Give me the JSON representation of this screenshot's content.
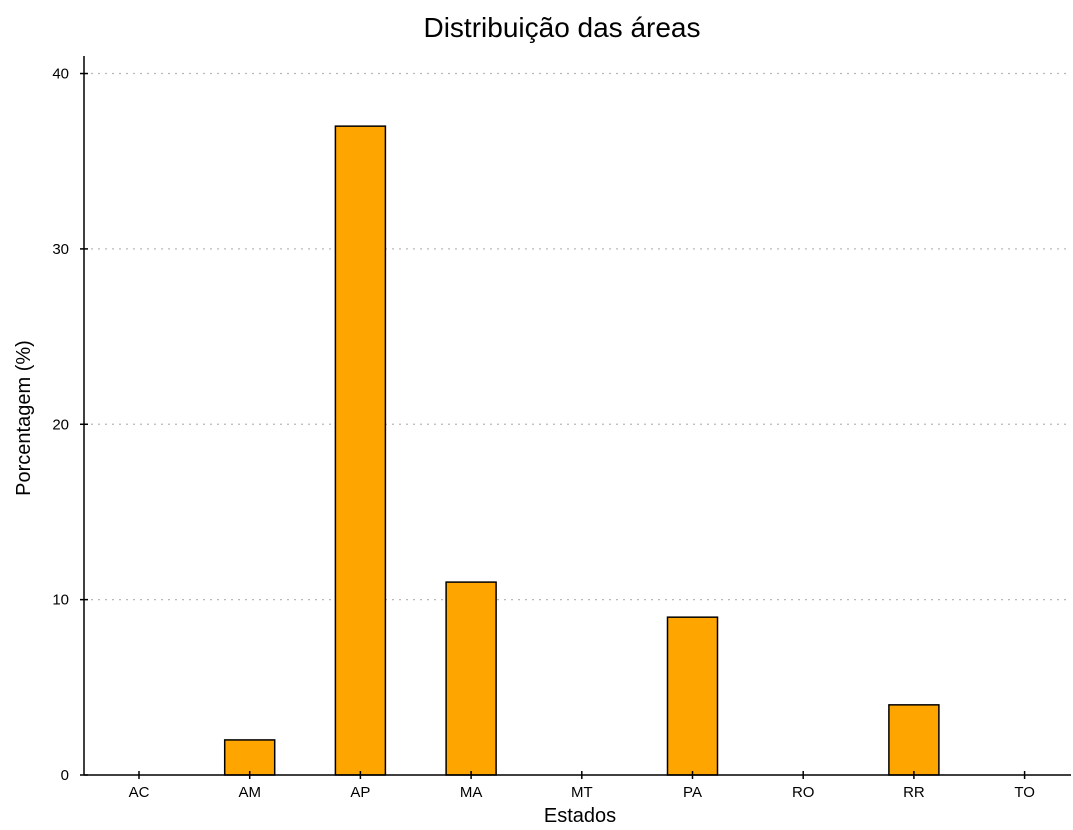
{
  "chart_data": {
    "type": "bar",
    "title": "Distribuição das áreas",
    "xlabel": "Estados",
    "ylabel": "Porcentagem (%)",
    "categories": [
      "AC",
      "AM",
      "AP",
      "MA",
      "MT",
      "PA",
      "RO",
      "RR",
      "TO"
    ],
    "values": [
      0,
      2,
      37,
      11,
      0,
      9,
      0,
      4,
      0
    ],
    "ylim": [
      0,
      41
    ],
    "yticks": [
      0,
      10,
      20,
      30,
      40
    ],
    "grid": "horizontal-dotted",
    "bar_color": "#FFA500",
    "legend": "none"
  }
}
